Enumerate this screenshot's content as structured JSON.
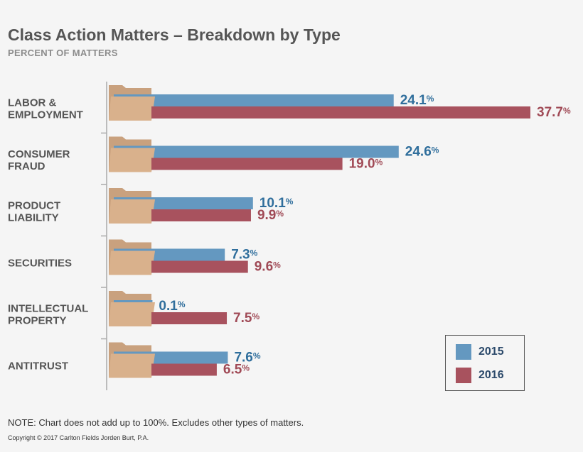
{
  "header": {
    "title": "Class Action Matters – Breakdown by Type",
    "subtitle": "PERCENT OF MATTERS"
  },
  "chart_data": {
    "type": "bar",
    "orientation": "horizontal",
    "categories": [
      [
        "LABOR &",
        "EMPLOYMENT"
      ],
      [
        "CONSUMER",
        "FRAUD"
      ],
      [
        "PRODUCT",
        "LIABILITY"
      ],
      [
        "SECURITIES"
      ],
      [
        "INTELLECTUAL",
        "PROPERTY"
      ],
      [
        "ANTITRUST"
      ]
    ],
    "series": [
      {
        "name": "2015",
        "color": "#6498c0",
        "label_color": "#2f6e9c",
        "values": [
          24.1,
          24.6,
          10.1,
          7.3,
          0.1,
          7.6
        ],
        "labels": [
          "24.1",
          "24.6",
          "10.1",
          "7.3",
          "0.1",
          "7.6"
        ]
      },
      {
        "name": "2016",
        "color": "#a8525e",
        "label_color": "#a04a56",
        "values": [
          37.7,
          19.0,
          9.9,
          9.6,
          7.5,
          6.5
        ],
        "labels": [
          "37.7",
          "19.0",
          "9.9",
          "9.6",
          "7.5",
          "6.5"
        ]
      }
    ],
    "value_suffix": "%",
    "xlim": [
      0,
      37.7
    ],
    "legend_position": "bottom-right",
    "grid": false
  },
  "legend": {
    "items": [
      "2015",
      "2016"
    ]
  },
  "footer": {
    "note": "NOTE: Chart does not add up to 100%. Excludes other types of matters.",
    "copyright": "Copyright © 2017 Carlton Fields Jorden Burt, P.A."
  },
  "colors": {
    "folder_back": "#c9a17e",
    "folder_front": "#d9b18c",
    "axis": "#aaaaaa"
  }
}
